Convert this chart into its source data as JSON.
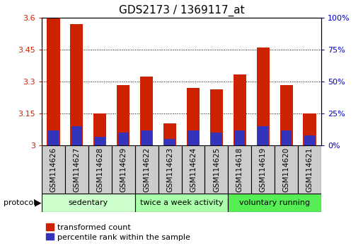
{
  "title": "GDS2173 / 1369117_at",
  "samples": [
    "GSM114626",
    "GSM114627",
    "GSM114628",
    "GSM114629",
    "GSM114622",
    "GSM114623",
    "GSM114624",
    "GSM114625",
    "GSM114618",
    "GSM114619",
    "GSM114620",
    "GSM114621"
  ],
  "red_values": [
    3.6,
    3.57,
    3.15,
    3.285,
    3.325,
    3.105,
    3.27,
    3.265,
    3.335,
    3.46,
    3.285,
    3.15
  ],
  "blue_percentiles": [
    12,
    15,
    7,
    10,
    12,
    5,
    12,
    10,
    12,
    15,
    12,
    8
  ],
  "ymin": 3.0,
  "ymax": 3.6,
  "y2min": 0,
  "y2max": 100,
  "yticks": [
    3.0,
    3.15,
    3.3,
    3.45,
    3.6
  ],
  "ytick_labels": [
    "3",
    "3.15",
    "3.3",
    "3.45",
    "3.6"
  ],
  "y2ticks": [
    0,
    25,
    50,
    75,
    100
  ],
  "y2tick_labels": [
    "0%",
    "25%",
    "50%",
    "75%",
    "100%"
  ],
  "groups": [
    {
      "label": "sedentary",
      "indices": [
        0,
        1,
        2,
        3
      ],
      "color": "#ccffcc"
    },
    {
      "label": "twice a week activity",
      "indices": [
        4,
        5,
        6,
        7
      ],
      "color": "#aaffaa"
    },
    {
      "label": "voluntary running",
      "indices": [
        8,
        9,
        10,
        11
      ],
      "color": "#55ee55"
    }
  ],
  "bar_color_red": "#cc2200",
  "bar_color_blue": "#3333bb",
  "bar_width": 0.55,
  "ylabel_color_left": "#cc2200",
  "ylabel_color_right": "#0000cc",
  "legend_red_label": "transformed count",
  "legend_blue_label": "percentile rank within the sample",
  "title_fontsize": 11,
  "tick_fontsize": 8,
  "label_fontsize": 7.5,
  "bar_base": 3.0,
  "sample_box_color": "#cccccc",
  "bg_color": "#ffffff"
}
